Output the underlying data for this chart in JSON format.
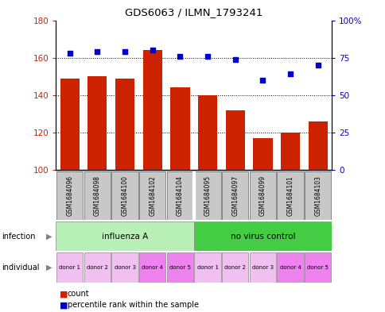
{
  "title": "GDS6063 / ILMN_1793241",
  "samples": [
    "GSM1684096",
    "GSM1684098",
    "GSM1684100",
    "GSM1684102",
    "GSM1684104",
    "GSM1684095",
    "GSM1684097",
    "GSM1684099",
    "GSM1684101",
    "GSM1684103"
  ],
  "counts": [
    149,
    150,
    149,
    164,
    144,
    140,
    132,
    117,
    120,
    126
  ],
  "percentiles": [
    78,
    79,
    79,
    80,
    76,
    76,
    74,
    60,
    64,
    70
  ],
  "ylim_left": [
    100,
    180
  ],
  "ylim_right": [
    0,
    100
  ],
  "yticks_left": [
    100,
    120,
    140,
    160,
    180
  ],
  "yticks_right": [
    0,
    25,
    50,
    75,
    100
  ],
  "bar_color": "#cc2200",
  "dot_color": "#0000cc",
  "sample_box_color": "#c8c8c8",
  "inf_color_A": "#b8f0b8",
  "inf_color_B": "#44cc44",
  "donor_colors": [
    "#f0c0f0",
    "#f0c0f0",
    "#f0c0f0",
    "#ee82ee",
    "#ee82ee",
    "#f0c0f0",
    "#f0c0f0",
    "#f0c0f0",
    "#ee82ee",
    "#ee82ee"
  ],
  "donors": [
    "donor 1",
    "donor 2",
    "donor 3",
    "donor 4",
    "donor 5",
    "donor 1",
    "donor 2",
    "donor 3",
    "donor 4",
    "donor 5"
  ],
  "ylabel_left_color": "#cc2200",
  "ylabel_right_color": "#0000cc",
  "gridline_ticks": [
    120,
    140,
    160
  ]
}
